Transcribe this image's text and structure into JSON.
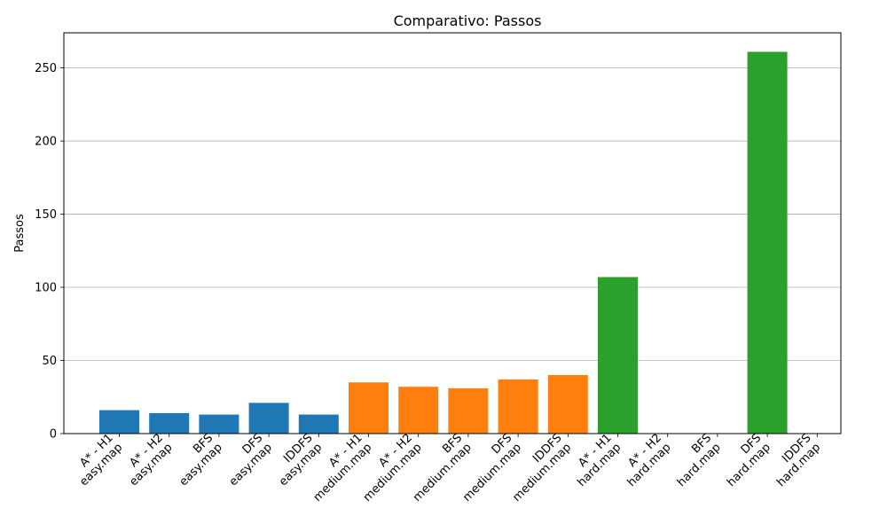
{
  "chart_data": {
    "type": "bar",
    "title": "Comparativo: Passos",
    "xlabel": "",
    "ylabel": "Passos",
    "ylim": [
      0,
      274
    ],
    "yticks": [
      0,
      50,
      100,
      150,
      200,
      250
    ],
    "grid": "y",
    "legend": "none",
    "categories": [
      "A* - H1\neasy.map",
      "A* - H2\neasy.map",
      "BFS\neasy.map",
      "DFS\neasy.map",
      "IDDFS\neasy.map",
      "A* - H1\nmedium.map",
      "A* - H2\nmedium.map",
      "BFS\nmedium.map",
      "DFS\nmedium.map",
      "IDDFS\nmedium.map",
      "A* - H1\nhard.map",
      "A* - H2\nhard.map",
      "BFS\nhard.map",
      "DFS\nhard.map",
      "IDDFS\nhard.map"
    ],
    "values": [
      16,
      14,
      13,
      21,
      13,
      35,
      32,
      31,
      37,
      40,
      107,
      0,
      0,
      261,
      0
    ],
    "groups": [
      "easy.map",
      "easy.map",
      "easy.map",
      "easy.map",
      "easy.map",
      "medium.map",
      "medium.map",
      "medium.map",
      "medium.map",
      "medium.map",
      "hard.map",
      "hard.map",
      "hard.map",
      "hard.map",
      "hard.map"
    ],
    "colors": {
      "easy.map": "#1f77b4",
      "medium.map": "#ff7f0e",
      "hard.map": "#2ca02c"
    }
  }
}
